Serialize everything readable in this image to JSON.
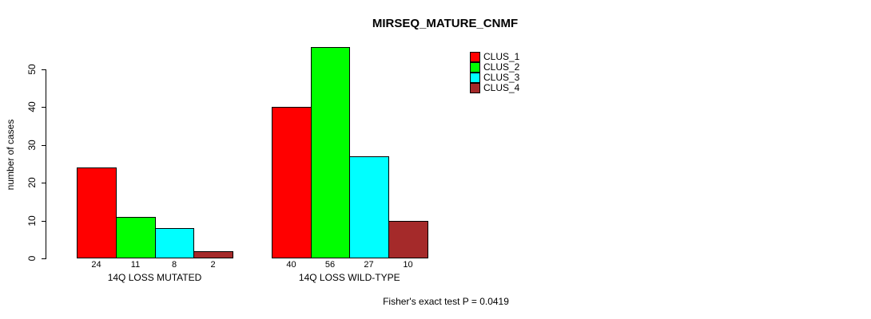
{
  "chart_data": {
    "type": "bar",
    "title": "MIRSEQ_MATURE_CNMF",
    "ylabel": "number of cases",
    "categories": [
      "14Q LOSS MUTATED",
      "14Q LOSS WILD-TYPE"
    ],
    "series": [
      {
        "name": "CLUS_1",
        "color": "#ff0000",
        "values": [
          24,
          40
        ]
      },
      {
        "name": "CLUS_2",
        "color": "#00ff00",
        "values": [
          11,
          56
        ]
      },
      {
        "name": "CLUS_3",
        "color": "#00ffff",
        "values": [
          8,
          27
        ]
      },
      {
        "name": "CLUS_4",
        "color": "#a52a2a",
        "values": [
          2,
          10
        ]
      }
    ],
    "yticks": [
      0,
      10,
      20,
      30,
      40,
      50
    ],
    "ylim": [
      0,
      56
    ],
    "grid": false,
    "legend_position": "top-right",
    "bar_value_labels": true,
    "annotation": "Fisher's exact test P = 0.0419"
  }
}
